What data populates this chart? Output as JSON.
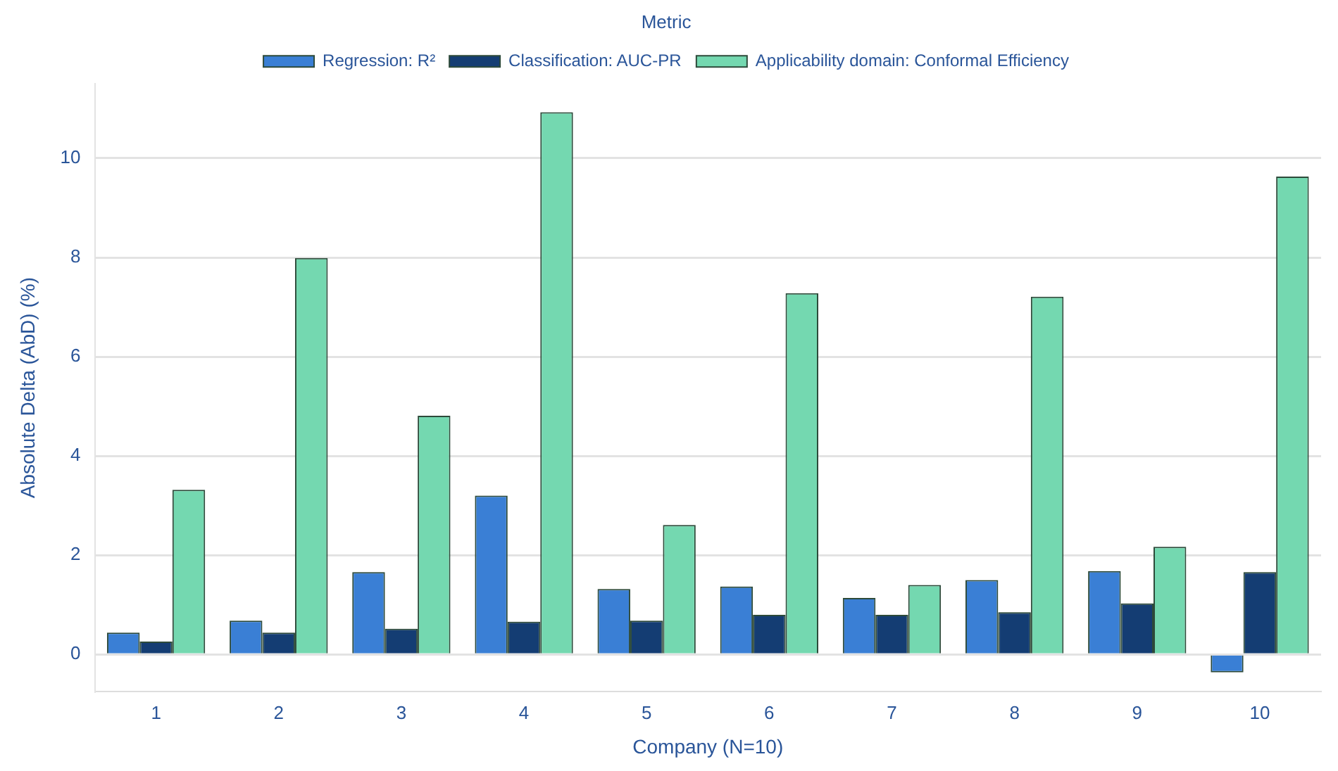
{
  "chart_data": {
    "type": "bar",
    "xlabel": "Company (N=10)",
    "ylabel": "Absolute Delta (AbD) (%)",
    "legend_title": "Metric",
    "categories": [
      "1",
      "2",
      "3",
      "4",
      "5",
      "6",
      "7",
      "8",
      "9",
      "10"
    ],
    "series": [
      {
        "name": "Regression: R²",
        "color": "#3a7fd5",
        "values": [
          0.44,
          0.68,
          1.66,
          3.2,
          1.32,
          1.37,
          1.14,
          1.5,
          1.68,
          -0.36
        ]
      },
      {
        "name": "Classification: AUC-PR",
        "color": "#143d73",
        "values": [
          0.26,
          0.44,
          0.52,
          0.66,
          0.68,
          0.8,
          0.8,
          0.85,
          1.03,
          1.66
        ]
      },
      {
        "name": "Applicability domain: Conformal Efficiency",
        "color": "#74d8b0",
        "values": [
          3.32,
          7.99,
          4.81,
          10.93,
          2.61,
          7.28,
          1.4,
          7.21,
          2.17,
          9.63
        ]
      }
    ],
    "ylim": [
      -0.75,
      11.5
    ],
    "yticks": [
      0,
      2,
      4,
      6,
      8,
      10
    ],
    "grid": "y",
    "legend": "top"
  }
}
